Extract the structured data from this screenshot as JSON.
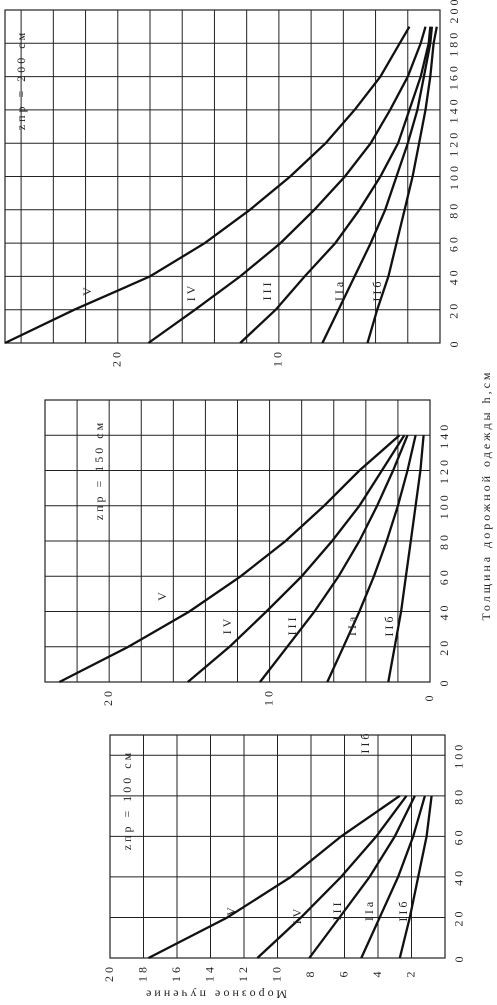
{
  "chart_data": [
    {
      "type": "line",
      "title": "zпр = 200 см",
      "x": [
        0,
        20,
        40,
        60,
        80,
        100,
        120,
        140,
        160,
        180,
        190
      ],
      "xlim": [
        0,
        200
      ],
      "xticks": [
        0,
        20,
        40,
        60,
        80,
        100,
        120,
        140,
        160,
        180,
        200
      ],
      "ylim": [
        0,
        27
      ],
      "yticks": [
        10,
        20
      ],
      "ygrid": [
        0,
        2,
        4,
        6,
        8,
        10,
        12,
        14,
        16,
        18,
        20,
        22,
        24,
        26
      ],
      "series": [
        {
          "name": "V",
          "color": "#111111",
          "values": [
            27,
            22.7,
            18,
            14.6,
            11.8,
            9.3,
            7.1,
            5.3,
            3.7,
            2.5,
            1.9
          ]
        },
        {
          "name": "IV",
          "color": "#111111",
          "values": [
            18.1,
            15.2,
            12.4,
            9.9,
            7.8,
            5.9,
            4.3,
            3.1,
            2.0,
            1.2,
            0.9
          ]
        },
        {
          "name": "III",
          "color": "#111111",
          "values": [
            12.4,
            10.2,
            8.4,
            6.5,
            5.0,
            3.7,
            2.6,
            1.9,
            1.2,
            0.7,
            0.6
          ]
        },
        {
          "name": "IIa",
          "color": "#111111",
          "values": [
            7.3,
            6.3,
            5.3,
            4.3,
            3.4,
            2.7,
            2.0,
            1.4,
            1.0,
            0.6,
            0.5
          ]
        },
        {
          "name": "IIб",
          "color": "#111111",
          "values": [
            4.5,
            3.9,
            3.2,
            2.7,
            2.2,
            1.7,
            1.3,
            0.9,
            0.6,
            0.4,
            0.2
          ]
        }
      ]
    },
    {
      "type": "line",
      "title": "zпр = 150 см",
      "xlabel": "Толщина дорожной одежды h,см",
      "x": [
        0,
        20,
        40,
        60,
        80,
        100,
        120,
        140
      ],
      "xlim": [
        0,
        160
      ],
      "xticks": [
        0,
        20,
        40,
        60,
        80,
        100,
        120,
        140
      ],
      "ylim": [
        0,
        24
      ],
      "yticks": [
        0,
        10,
        20
      ],
      "ygrid": [
        0,
        2,
        4,
        6,
        8,
        10,
        12,
        14,
        16,
        18,
        20,
        22,
        24
      ],
      "series": [
        {
          "name": "V",
          "color": "#111111",
          "values": [
            23.1,
            18.8,
            15.0,
            11.8,
            9.0,
            6.6,
            4.4,
            1.9
          ]
        },
        {
          "name": "IV",
          "color": "#111111",
          "values": [
            15.1,
            12.5,
            10.2,
            8.0,
            6.1,
            4.4,
            3.0,
            1.6
          ]
        },
        {
          "name": "III",
          "color": "#111111",
          "values": [
            10.6,
            8.9,
            7.2,
            5.7,
            4.4,
            3.3,
            2.3,
            1.4
          ]
        },
        {
          "name": "IIa",
          "color": "#111111",
          "values": [
            6.4,
            5.4,
            4.4,
            3.5,
            2.7,
            2.0,
            1.4,
            0.9
          ]
        },
        {
          "name": "IIб",
          "color": "#111111",
          "values": [
            2.6,
            2.2,
            1.8,
            1.5,
            1.2,
            0.9,
            0.6,
            0.4
          ]
        }
      ]
    },
    {
      "type": "line",
      "title": "zпр = 100 см",
      "ylabel": "Морозное пучение",
      "annotation": "IIб",
      "x": [
        0,
        20,
        40,
        60,
        80
      ],
      "xlim": [
        0,
        110
      ],
      "xticks": [
        0,
        20,
        40,
        60,
        80,
        100
      ],
      "ylim": [
        0,
        20
      ],
      "yticks": [
        2,
        4,
        6,
        8,
        10,
        12,
        14,
        16,
        18,
        20
      ],
      "ygrid": [
        0,
        2,
        4,
        6,
        8,
        10,
        12,
        14,
        16,
        18,
        20
      ],
      "series": [
        {
          "name": "V",
          "color": "#111111",
          "values": [
            17.7,
            13.0,
            9.2,
            6.2,
            2.7
          ]
        },
        {
          "name": "IV",
          "color": "#111111",
          "values": [
            11.2,
            8.6,
            6.2,
            4.1,
            2.3
          ]
        },
        {
          "name": "III",
          "color": "#111111",
          "values": [
            8.1,
            6.3,
            4.5,
            3.0,
            1.8
          ]
        },
        {
          "name": "IIa",
          "color": "#111111",
          "values": [
            5.0,
            3.9,
            2.8,
            1.9,
            1.2
          ]
        },
        {
          "name": "IIб",
          "color": "#111111",
          "values": [
            2.7,
            2.1,
            1.6,
            1.1,
            0.8
          ]
        }
      ]
    }
  ]
}
